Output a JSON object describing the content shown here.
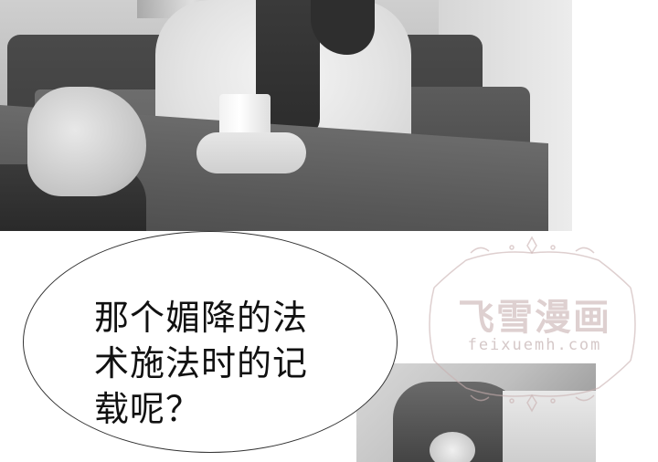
{
  "dialogue": {
    "lines": [
      "那个媚降的法",
      "术施法时的记",
      "载呢？"
    ]
  },
  "watermark": {
    "title": "飞雪漫画",
    "url": "feixuemh.com",
    "color": "#c3aaaa"
  }
}
